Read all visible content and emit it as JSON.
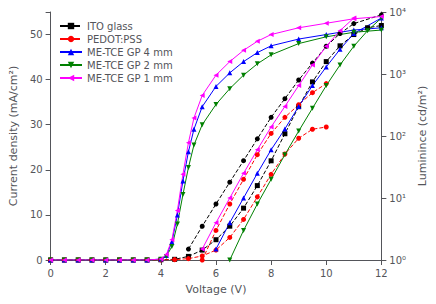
{
  "chart_data": {
    "type": "line",
    "xlabel": "Voltage (V)",
    "ylabel": "Current density (mA/cm²)",
    "y2label": "Luminince (cd/m²)",
    "xlim": [
      0,
      12
    ],
    "xticks": [
      0,
      2,
      4,
      6,
      8,
      10,
      12
    ],
    "ylim": [
      0,
      55
    ],
    "yticks": [
      0,
      10,
      20,
      30,
      40,
      50
    ],
    "y2lim": [
      1.0,
      10000.0
    ],
    "y2ticks": [
      {
        "value": 1,
        "label": "10⁰"
      },
      {
        "value": 10,
        "label": "10¹"
      },
      {
        "value": 100,
        "label": "10²"
      },
      {
        "value": 1000,
        "label": "10³"
      },
      {
        "value": 10000,
        "label": "10⁴"
      }
    ],
    "log": "y2",
    "grid": false,
    "legend": "upper left",
    "series": [
      {
        "name": "ITO glass",
        "color": "#000000",
        "marker": "square",
        "line_style": "dashed",
        "x": [
          0,
          0.5,
          1.0,
          1.5,
          2.0,
          2.5,
          3.0,
          3.5,
          4.0,
          4.5,
          5.0,
          5.5,
          6.0,
          6.5,
          7.0,
          7.5,
          8.0,
          8.5,
          9.0,
          9.5,
          10.0,
          10.5,
          11.0,
          11.5,
          12.0
        ],
        "values": [
          0,
          0,
          0,
          0,
          0,
          0,
          0,
          0.01,
          0.05,
          0.15,
          0.8,
          2.2,
          4.5,
          7.5,
          11.5,
          16.5,
          22.0,
          28.0,
          34.0,
          39.5,
          44.0,
          47.5,
          50.0,
          51.5,
          52.0
        ]
      },
      {
        "axis": "y2",
        "color": "#000000",
        "marker": "circle",
        "line_style": "dashed",
        "x": [
          5.0,
          5.5,
          6.0,
          6.5,
          7.0,
          7.5,
          8.0,
          8.5,
          9.0,
          9.5,
          10.0,
          10.5,
          11.0,
          12.0
        ],
        "values": [
          1.5,
          3.5,
          8.0,
          18.0,
          40.0,
          90.0,
          200.0,
          400.0,
          800.0,
          1500.0,
          2800.0,
          4500.0,
          6500.0,
          9000.0
        ]
      },
      {
        "name": "PEDOT:PSS",
        "color": "#ff0000",
        "marker": "circle",
        "line_style": "dashed",
        "x": [
          0,
          0.5,
          1.0,
          1.5,
          2.0,
          2.5,
          3.0,
          3.5,
          4.0,
          4.5,
          5.0,
          5.5,
          6.0,
          6.5,
          7.0,
          7.5,
          8.0,
          8.5,
          9.0,
          9.5,
          10.0
        ],
        "values": [
          0,
          0,
          0,
          0,
          0,
          0,
          0,
          0.005,
          0.02,
          0.08,
          0.3,
          0.9,
          2.2,
          5.0,
          9.0,
          14.0,
          19.0,
          23.5,
          27.0,
          29.0,
          29.5
        ]
      },
      {
        "axis": "y2",
        "color": "#ff0000",
        "marker": "circle",
        "line_style": "dashed",
        "x": [
          5.5,
          6.0,
          6.5,
          7.0,
          7.5,
          8.0,
          8.5,
          9.0,
          9.5,
          10.0
        ],
        "values": [
          1.0,
          3.0,
          8.0,
          20.0,
          50.0,
          110.0,
          200.0,
          320.0,
          500.0,
          700.0
        ]
      },
      {
        "name": "ME-TCE GP 4 mm",
        "color": "#0000ff",
        "marker": "triangle_up",
        "line_style": "solid",
        "x": [
          0,
          0.5,
          1.0,
          1.5,
          2.0,
          2.5,
          3.0,
          3.5,
          4.0,
          4.2,
          4.4,
          4.6,
          4.8,
          5.0,
          5.2,
          5.5,
          6.0,
          6.5,
          7.0,
          7.5,
          8.0,
          9.0,
          10.0,
          11.0,
          12.0
        ],
        "values": [
          0,
          0,
          0,
          0,
          0,
          0,
          0,
          0.01,
          0.2,
          1.0,
          4.0,
          10.0,
          17.5,
          24.0,
          29.0,
          34.0,
          38.5,
          41.5,
          44.0,
          46.0,
          47.5,
          49.0,
          50.0,
          51.0,
          51.5
        ]
      },
      {
        "axis": "y2",
        "color": "#0000ff",
        "marker": "triangle_up",
        "line_style": "solid",
        "x": [
          6.0,
          6.5,
          7.0,
          7.5,
          8.0,
          8.5,
          9.0,
          9.5,
          10.0,
          10.5,
          11.0,
          12.0
        ],
        "values": [
          1.5,
          4.0,
          10.0,
          25.0,
          60.0,
          130.0,
          300.0,
          650.0,
          1300.0,
          2500.0,
          4500.0,
          8000.0
        ]
      },
      {
        "name": "ME-TCE GP 2 mm",
        "color": "#008000",
        "marker": "triangle_down",
        "line_style": "solid",
        "x": [
          0,
          0.5,
          1.0,
          1.5,
          2.0,
          2.5,
          3.0,
          3.5,
          4.0,
          4.2,
          4.4,
          4.6,
          4.8,
          5.0,
          5.2,
          5.5,
          6.0,
          6.5,
          7.0,
          7.5,
          8.0,
          9.0,
          10.0,
          11.0,
          12.0
        ],
        "values": [
          0,
          0,
          0,
          0,
          0,
          0,
          0,
          0.01,
          0.15,
          0.8,
          3.0,
          8.0,
          14.5,
          20.5,
          25.5,
          30.0,
          34.5,
          38.0,
          41.0,
          43.5,
          45.5,
          48.0,
          49.5,
          50.5,
          51.0
        ]
      },
      {
        "axis": "y2",
        "color": "#008000",
        "marker": "triangle_down",
        "line_style": "solid",
        "x": [
          6.5,
          7.0,
          7.5,
          8.0,
          8.5,
          9.0,
          9.5,
          10.0,
          10.5,
          11.0,
          11.5,
          12.0
        ],
        "values": [
          1.0,
          3.0,
          8.0,
          20.0,
          50.0,
          120.0,
          280.0,
          650.0,
          1400.0,
          2800.0,
          5000.0,
          8000.0
        ]
      },
      {
        "name": "ME-TCE GP 1 mm",
        "color": "#ff00ff",
        "marker": "triangle_left",
        "line_style": "solid",
        "x": [
          0,
          0.5,
          1.0,
          1.5,
          2.0,
          2.5,
          3.0,
          3.5,
          4.0,
          4.2,
          4.4,
          4.6,
          4.8,
          5.0,
          5.2,
          5.5,
          6.0,
          6.5,
          7.0,
          7.5,
          8.0,
          9.0,
          10.0,
          11.0,
          12.0
        ],
        "values": [
          0,
          0,
          0,
          0,
          0,
          0,
          0,
          0.01,
          0.2,
          1.2,
          4.5,
          11.0,
          19.0,
          26.0,
          31.5,
          36.5,
          41.0,
          44.0,
          46.5,
          48.5,
          50.0,
          51.5,
          52.5,
          53.5,
          54.0
        ]
      },
      {
        "axis": "y2",
        "color": "#ff00ff",
        "marker": "triangle_left",
        "line_style": "solid",
        "x": [
          5.5,
          6.0,
          6.5,
          7.0,
          7.5,
          8.0,
          8.5,
          9.0,
          9.5,
          10.0,
          10.5,
          11.0
        ],
        "values": [
          1.5,
          4.0,
          10.0,
          25.0,
          60.0,
          140.0,
          300.0,
          650.0,
          1400.0,
          2800.0,
          5000.0,
          8000.0
        ]
      }
    ]
  }
}
